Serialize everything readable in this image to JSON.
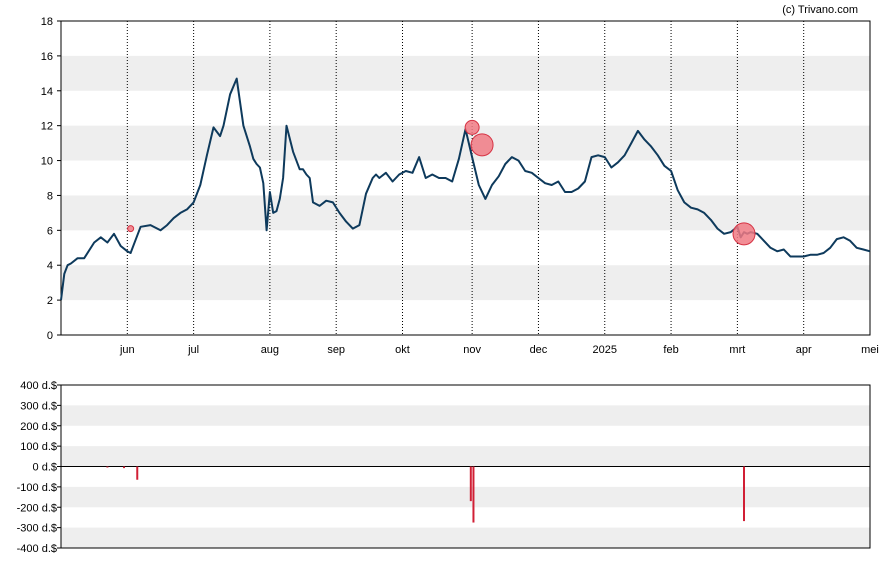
{
  "credit": "(c) Trivano.com",
  "colors": {
    "line": "#0e3a5c",
    "band": "#eeeeee",
    "grid": "#000000",
    "marker_fill": "#f07a84",
    "marker_stroke": "#d63344",
    "bar": "#d11f35"
  },
  "chart_data": [
    {
      "type": "line",
      "title": "",
      "xlabel": "",
      "ylabel": "",
      "ylim": [
        0,
        18
      ],
      "y_ticks": [
        "0",
        "2",
        "4",
        "6",
        "8",
        "10",
        "12",
        "14",
        "16",
        "18"
      ],
      "x_ticks": [
        "jun",
        "jul",
        "aug",
        "sep",
        "okt",
        "nov",
        "dec",
        "2025",
        "feb",
        "mrt",
        "apr",
        "mei"
      ],
      "x_tick_pos": [
        1.0,
        2.0,
        3.15,
        4.15,
        5.15,
        6.2,
        7.2,
        8.2,
        9.2,
        10.2,
        11.2,
        12.2
      ],
      "xlim": [
        0,
        12.2
      ],
      "grid": "vertical dotted at month ticks, alternating horizontal bands",
      "series": [
        {
          "x": [
            0,
            0.05,
            0.1,
            0.15,
            0.25,
            0.35,
            0.5,
            0.6,
            0.7,
            0.8,
            0.9,
            1.0,
            1.05,
            1.1,
            1.2,
            1.35,
            1.5,
            1.6,
            1.7,
            1.8,
            1.9,
            2.0,
            2.1,
            2.2,
            2.3,
            2.4,
            2.45,
            2.55,
            2.65,
            2.75,
            2.85,
            2.9,
            2.95,
            3.0,
            3.05,
            3.1,
            3.15,
            3.2,
            3.25,
            3.3,
            3.35,
            3.4,
            3.5,
            3.6,
            3.65,
            3.7,
            3.75,
            3.8,
            3.9,
            4.0,
            4.1,
            4.2,
            4.3,
            4.4,
            4.5,
            4.6,
            4.7,
            4.75,
            4.8,
            4.9,
            5.0,
            5.1,
            5.2,
            5.3,
            5.4,
            5.5,
            5.6,
            5.7,
            5.8,
            5.9,
            6.0,
            6.1,
            6.15,
            6.2,
            6.3,
            6.4,
            6.5,
            6.6,
            6.7,
            6.8,
            6.9,
            7.0,
            7.1,
            7.2,
            7.3,
            7.4,
            7.5,
            7.6,
            7.7,
            7.8,
            7.9,
            8.0,
            8.1,
            8.2,
            8.3,
            8.4,
            8.5,
            8.6,
            8.7,
            8.8,
            8.9,
            9.0,
            9.1,
            9.2,
            9.3,
            9.4,
            9.5,
            9.6,
            9.7,
            9.8,
            9.9,
            10.0,
            10.1,
            10.2,
            10.25,
            10.3,
            10.35,
            10.4,
            10.5,
            10.6,
            10.7,
            10.8,
            10.9,
            11.0,
            11.1,
            11.2,
            11.3,
            11.4,
            11.5,
            11.6,
            11.7,
            11.8,
            11.9,
            12.0,
            12.1,
            12.2
          ],
          "values": [
            2.0,
            3.5,
            4.0,
            4.1,
            4.4,
            4.4,
            5.3,
            5.6,
            5.3,
            5.8,
            5.1,
            4.8,
            4.7,
            5.2,
            6.2,
            6.3,
            6.0,
            6.3,
            6.7,
            7.0,
            7.2,
            7.6,
            8.6,
            10.3,
            11.9,
            11.4,
            12.0,
            13.8,
            14.7,
            12.0,
            10.8,
            10.1,
            9.8,
            9.6,
            8.7,
            6.0,
            8.2,
            7.0,
            7.1,
            7.8,
            9.0,
            12.0,
            10.5,
            9.5,
            9.5,
            9.2,
            9.0,
            7.6,
            7.4,
            7.7,
            7.6,
            7.0,
            6.5,
            6.1,
            6.3,
            8.1,
            9.0,
            9.2,
            9.0,
            9.3,
            8.8,
            9.2,
            9.4,
            9.3,
            10.2,
            9.0,
            9.2,
            9.0,
            9.0,
            8.8,
            10.1,
            11.8,
            11.0,
            10.2,
            8.6,
            7.8,
            8.6,
            9.1,
            9.8,
            10.2,
            10.0,
            9.4,
            9.3,
            9.0,
            8.7,
            8.6,
            8.8,
            8.2,
            8.2,
            8.4,
            8.8,
            10.2,
            10.3,
            10.2,
            9.6,
            9.9,
            10.3,
            11.0,
            11.7,
            11.2,
            10.8,
            10.3,
            9.7,
            9.4,
            8.3,
            7.6,
            7.3,
            7.2,
            7.0,
            6.6,
            6.1,
            5.8,
            5.9,
            6.2,
            5.6,
            5.9,
            5.8,
            5.9,
            5.8,
            5.4,
            5.0,
            4.8,
            4.9,
            4.5,
            4.5,
            4.5,
            4.6,
            4.6,
            4.7,
            5.0,
            5.5,
            5.6,
            5.4,
            5.0,
            4.9,
            4.8
          ]
        }
      ],
      "markers": [
        {
          "x": 6.2,
          "y": 11.9,
          "size": "small"
        },
        {
          "x": 6.35,
          "y": 10.9,
          "size": "large"
        },
        {
          "x": 10.3,
          "y": 5.8,
          "size": "large"
        },
        {
          "x": 1.05,
          "y": 6.1,
          "size": "tiny"
        }
      ]
    },
    {
      "type": "bar",
      "title": "",
      "xlabel": "",
      "ylabel": "",
      "ylim": [
        -400,
        400
      ],
      "y_ticks": [
        "400 d.$",
        "300 d.$",
        "200 d.$",
        "100 d.$",
        "0 d.$",
        "-100 d.$",
        "-200 d.$",
        "-300 d.$",
        "-400 d.$"
      ],
      "xlim": [
        0,
        12.2
      ],
      "grid": "alternating horizontal bands",
      "x": [
        0.7,
        0.95,
        1.15,
        6.18,
        6.22,
        10.3
      ],
      "values": [
        -5,
        -8,
        -65,
        -170,
        -275,
        -268
      ]
    }
  ]
}
